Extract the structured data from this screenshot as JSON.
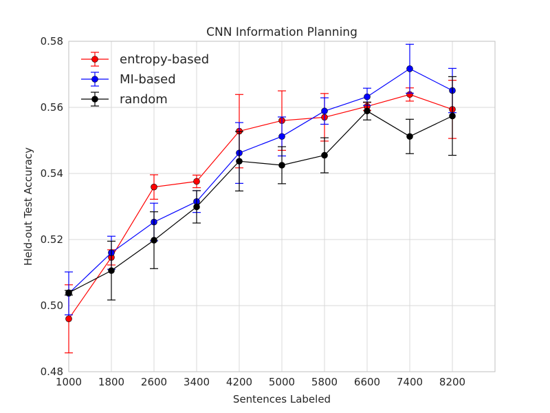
{
  "chart_data": {
    "type": "line",
    "title": "CNN Information Planning",
    "xlabel": "Sentences Labeled",
    "ylabel": "Held-out Test Accuracy",
    "xlim": [
      1000,
      9000
    ],
    "ylim": [
      0.48,
      0.58
    ],
    "xticks": [
      1000,
      1800,
      2600,
      3400,
      4200,
      5000,
      5800,
      6600,
      7400,
      8200
    ],
    "xtick_labels": [
      "1000",
      "1800",
      "2600",
      "3400",
      "4200",
      "5000",
      "5800",
      "6600",
      "7400",
      "8200"
    ],
    "yticks": [
      0.48,
      0.5,
      0.52,
      0.54,
      0.56,
      0.58
    ],
    "ytick_labels": [
      "0.48",
      "0.50",
      "0.52",
      "0.54",
      "0.56",
      "0.58"
    ],
    "grid": true,
    "legend_position": "top-left",
    "x": [
      1000,
      1800,
      2600,
      3400,
      4200,
      5000,
      5800,
      6600,
      7400,
      8200
    ],
    "series": [
      {
        "name": "entropy-based",
        "color": "#ff0000",
        "values": [
          0.496,
          0.5146,
          0.5359,
          0.5376,
          0.5528,
          0.556,
          0.557,
          0.5603,
          0.5639,
          0.5594
        ],
        "errors": [
          0.0103,
          0.0023,
          0.0037,
          0.0019,
          0.0111,
          0.009,
          0.0072,
          0.0012,
          0.002,
          0.0088
        ]
      },
      {
        "name": "MI-based",
        "color": "#0000ff",
        "values": [
          0.5037,
          0.516,
          0.5253,
          0.5315,
          0.5462,
          0.5512,
          0.5589,
          0.5632,
          0.5717,
          0.5651
        ],
        "errors": [
          0.0065,
          0.005,
          0.0057,
          0.0033,
          0.0092,
          0.0059,
          0.004,
          0.0026,
          0.0074,
          0.0067
        ]
      },
      {
        "name": "random",
        "color": "#000000",
        "values": [
          0.5039,
          0.5106,
          0.5198,
          0.5299,
          0.5437,
          0.5425,
          0.5455,
          0.5589,
          0.5512,
          0.5574
        ],
        "errors": [
          0.0007,
          0.0089,
          0.0086,
          0.0049,
          0.009,
          0.0056,
          0.0053,
          0.0027,
          0.0052,
          0.0119
        ]
      }
    ]
  }
}
